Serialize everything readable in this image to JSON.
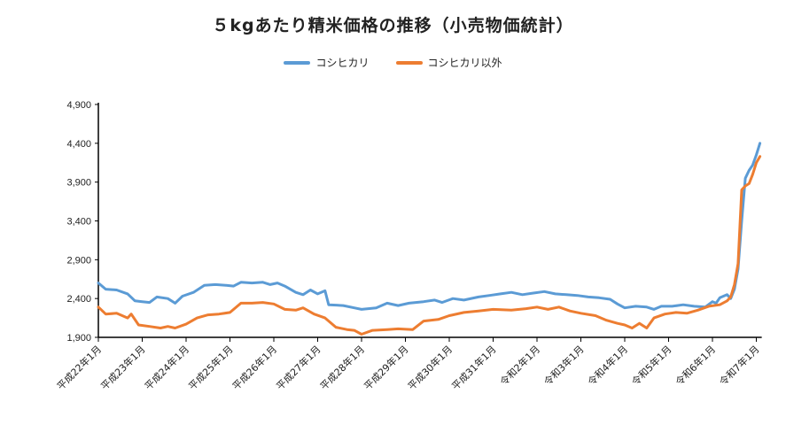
{
  "chart_data": {
    "type": "line",
    "title": "５kgあたり精米価格の推移（小売物価統計）",
    "xlabel": "",
    "ylabel": "",
    "ylim": [
      1900,
      4900
    ],
    "yticks": [
      "4,900",
      "4,400",
      "3,900",
      "3,400",
      "2,900",
      "2,400",
      "1,900"
    ],
    "ytick_values": [
      4900,
      4400,
      3900,
      3400,
      2900,
      2400,
      1900
    ],
    "xticks": [
      "平成22年1月",
      "平成23年1月",
      "平成24年1月",
      "平成25年1月",
      "平成26年1月",
      "平成27年1月",
      "平成28年1月",
      "平成29年1月",
      "平成30年1月",
      "平成31年1月",
      "令和2年1月",
      "令和3年1月",
      "令和4年1月",
      "令和5年1月",
      "令和6年1月",
      "令和7年1月"
    ],
    "xtick_dates": [
      "2010-01",
      "2011-01",
      "2012-01",
      "2013-01",
      "2014-01",
      "2015-01",
      "2016-01",
      "2017-01",
      "2018-01",
      "2019-01",
      "2020-01",
      "2021-01",
      "2022-01",
      "2023-01",
      "2024-01",
      "2025-01"
    ],
    "xlim": [
      "2010-01",
      "2025-02"
    ],
    "grid": false,
    "legend_placement": "top",
    "series": [
      {
        "name": "コシヒカリ",
        "color": "#5b9bd5",
        "points": [
          [
            "2010-01",
            2600
          ],
          [
            "2010-03",
            2520
          ],
          [
            "2010-06",
            2510
          ],
          [
            "2010-09",
            2460
          ],
          [
            "2010-11",
            2370
          ],
          [
            "2011-01",
            2360
          ],
          [
            "2011-03",
            2350
          ],
          [
            "2011-05",
            2420
          ],
          [
            "2011-08",
            2400
          ],
          [
            "2011-10",
            2340
          ],
          [
            "2011-12",
            2430
          ],
          [
            "2012-03",
            2480
          ],
          [
            "2012-06",
            2570
          ],
          [
            "2012-09",
            2580
          ],
          [
            "2012-12",
            2570
          ],
          [
            "2013-02",
            2560
          ],
          [
            "2013-04",
            2610
          ],
          [
            "2013-07",
            2600
          ],
          [
            "2013-10",
            2610
          ],
          [
            "2013-12",
            2580
          ],
          [
            "2014-02",
            2600
          ],
          [
            "2014-04",
            2560
          ],
          [
            "2014-07",
            2480
          ],
          [
            "2014-09",
            2450
          ],
          [
            "2014-11",
            2510
          ],
          [
            "2015-01",
            2460
          ],
          [
            "2015-03",
            2500
          ],
          [
            "2015-04",
            2320
          ],
          [
            "2015-08",
            2310
          ],
          [
            "2015-11",
            2280
          ],
          [
            "2016-01",
            2260
          ],
          [
            "2016-05",
            2280
          ],
          [
            "2016-08",
            2340
          ],
          [
            "2016-11",
            2310
          ],
          [
            "2017-02",
            2340
          ],
          [
            "2017-06",
            2360
          ],
          [
            "2017-09",
            2380
          ],
          [
            "2017-11",
            2350
          ],
          [
            "2018-02",
            2400
          ],
          [
            "2018-05",
            2380
          ],
          [
            "2018-09",
            2420
          ],
          [
            "2018-12",
            2440
          ],
          [
            "2019-03",
            2460
          ],
          [
            "2019-06",
            2480
          ],
          [
            "2019-09",
            2450
          ],
          [
            "2019-12",
            2470
          ],
          [
            "2020-03",
            2490
          ],
          [
            "2020-06",
            2460
          ],
          [
            "2020-09",
            2450
          ],
          [
            "2020-12",
            2440
          ],
          [
            "2021-03",
            2420
          ],
          [
            "2021-06",
            2410
          ],
          [
            "2021-09",
            2390
          ],
          [
            "2021-11",
            2330
          ],
          [
            "2022-01",
            2280
          ],
          [
            "2022-04",
            2300
          ],
          [
            "2022-07",
            2290
          ],
          [
            "2022-09",
            2260
          ],
          [
            "2022-11",
            2300
          ],
          [
            "2023-02",
            2300
          ],
          [
            "2023-05",
            2320
          ],
          [
            "2023-08",
            2300
          ],
          [
            "2023-11",
            2290
          ],
          [
            "2024-01",
            2360
          ],
          [
            "2024-02",
            2340
          ],
          [
            "2024-03",
            2410
          ],
          [
            "2024-05",
            2450
          ],
          [
            "2024-06",
            2400
          ],
          [
            "2024-07",
            2520
          ],
          [
            "2024-08",
            2780
          ],
          [
            "2024-09",
            3400
          ],
          [
            "2024-10",
            3950
          ],
          [
            "2024-11",
            4050
          ],
          [
            "2024-12",
            4120
          ],
          [
            "2025-01",
            4250
          ],
          [
            "2025-02",
            4400
          ]
        ]
      },
      {
        "name": "コシヒカリ以外",
        "color": "#ed7d31",
        "points": [
          [
            "2010-01",
            2290
          ],
          [
            "2010-03",
            2200
          ],
          [
            "2010-06",
            2210
          ],
          [
            "2010-09",
            2150
          ],
          [
            "2010-10",
            2200
          ],
          [
            "2010-12",
            2060
          ],
          [
            "2011-03",
            2040
          ],
          [
            "2011-06",
            2020
          ],
          [
            "2011-08",
            2040
          ],
          [
            "2011-10",
            2020
          ],
          [
            "2012-01",
            2070
          ],
          [
            "2012-04",
            2150
          ],
          [
            "2012-07",
            2190
          ],
          [
            "2012-10",
            2200
          ],
          [
            "2013-01",
            2220
          ],
          [
            "2013-04",
            2340
          ],
          [
            "2013-07",
            2340
          ],
          [
            "2013-10",
            2350
          ],
          [
            "2014-01",
            2330
          ],
          [
            "2014-04",
            2260
          ],
          [
            "2014-07",
            2250
          ],
          [
            "2014-09",
            2280
          ],
          [
            "2014-12",
            2200
          ],
          [
            "2015-03",
            2150
          ],
          [
            "2015-06",
            2030
          ],
          [
            "2015-09",
            2000
          ],
          [
            "2015-11",
            1990
          ],
          [
            "2016-01",
            1940
          ],
          [
            "2016-04",
            1990
          ],
          [
            "2016-08",
            2000
          ],
          [
            "2016-11",
            2010
          ],
          [
            "2017-03",
            2000
          ],
          [
            "2017-06",
            2110
          ],
          [
            "2017-10",
            2130
          ],
          [
            "2018-01",
            2180
          ],
          [
            "2018-05",
            2220
          ],
          [
            "2018-09",
            2240
          ],
          [
            "2019-01",
            2260
          ],
          [
            "2019-06",
            2250
          ],
          [
            "2019-10",
            2270
          ],
          [
            "2020-01",
            2290
          ],
          [
            "2020-04",
            2260
          ],
          [
            "2020-07",
            2290
          ],
          [
            "2020-10",
            2240
          ],
          [
            "2021-01",
            2210
          ],
          [
            "2021-05",
            2180
          ],
          [
            "2021-08",
            2120
          ],
          [
            "2021-11",
            2080
          ],
          [
            "2022-01",
            2060
          ],
          [
            "2022-03",
            2020
          ],
          [
            "2022-05",
            2080
          ],
          [
            "2022-07",
            2020
          ],
          [
            "2022-09",
            2150
          ],
          [
            "2022-12",
            2200
          ],
          [
            "2023-03",
            2220
          ],
          [
            "2023-06",
            2210
          ],
          [
            "2023-09",
            2250
          ],
          [
            "2023-12",
            2300
          ],
          [
            "2024-03",
            2320
          ],
          [
            "2024-05",
            2370
          ],
          [
            "2024-06",
            2420
          ],
          [
            "2024-07",
            2580
          ],
          [
            "2024-08",
            2850
          ],
          [
            "2024-09",
            3800
          ],
          [
            "2024-10",
            3850
          ],
          [
            "2024-11",
            3880
          ],
          [
            "2024-12",
            4000
          ],
          [
            "2025-01",
            4150
          ],
          [
            "2025-02",
            4230
          ]
        ]
      }
    ]
  }
}
